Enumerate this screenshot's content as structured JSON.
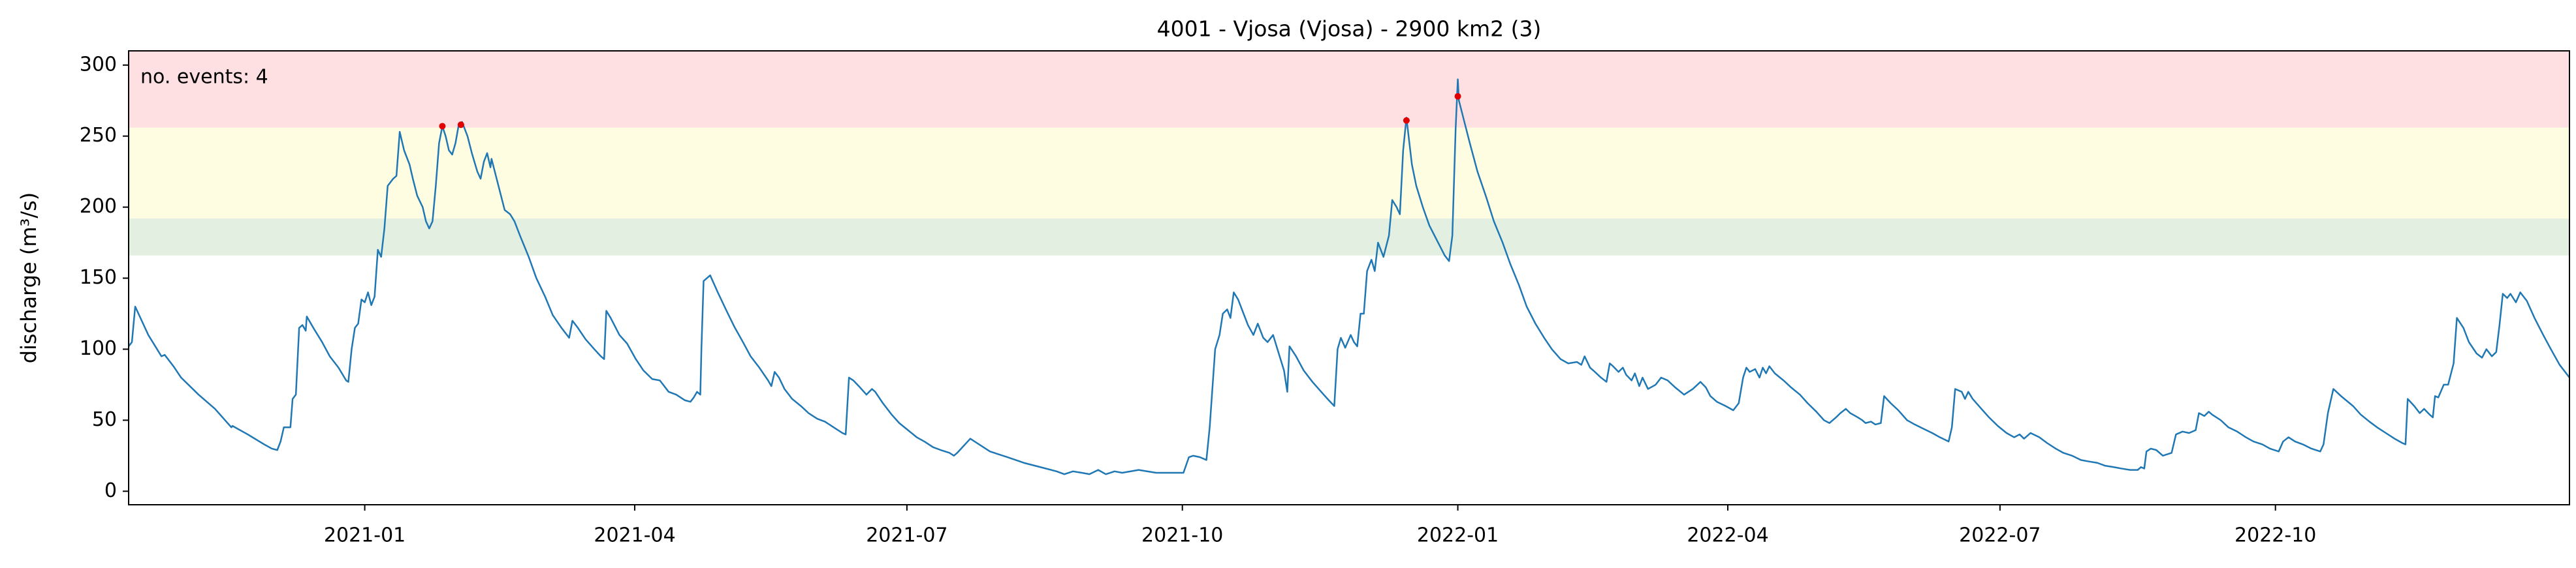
{
  "chart_data": {
    "type": "line",
    "title": "4001 - Vjosa (Vjosa) - 2900 km2 (3)",
    "ylabel": "discharge (m³/s)",
    "annotation": "no. events: 4",
    "annotation_color": "#e00000",
    "color": "#1f77b4",
    "xlim": [
      2020.784,
      2023.017
    ],
    "xticks": [
      {
        "value": 2021.0,
        "label": "2021-01"
      },
      {
        "value": 2021.247,
        "label": "2021-04"
      },
      {
        "value": 2021.496,
        "label": "2021-07"
      },
      {
        "value": 2021.748,
        "label": "2021-10"
      },
      {
        "value": 2022.0,
        "label": "2022-01"
      },
      {
        "value": 2022.247,
        "label": "2022-04"
      },
      {
        "value": 2022.496,
        "label": "2022-07"
      },
      {
        "value": 2022.748,
        "label": "2022-10"
      }
    ],
    "ylim": [
      -9.5,
      310
    ],
    "yticks": [
      0,
      50,
      100,
      150,
      200,
      250,
      300
    ],
    "bands": [
      {
        "lower": 166,
        "upper": 192,
        "color": "#e3f0e1"
      },
      {
        "lower": 192,
        "upper": 256,
        "color": "#fefde1"
      },
      {
        "lower": 256,
        "upper": 310,
        "color": "#ffe0e2"
      }
    ],
    "events": {
      "color": "#e00000",
      "x": [
        2021.071,
        2021.088,
        2021.953,
        2022.0
      ],
      "values": [
        257,
        258,
        261,
        278
      ]
    },
    "x": [
      2020.784,
      2020.787,
      2020.79,
      2020.796,
      2020.802,
      2020.81,
      2020.814,
      2020.817,
      2020.825,
      2020.832,
      2020.848,
      2020.863,
      2020.878,
      2020.879,
      2020.893,
      2020.908,
      2020.915,
      2020.92,
      2020.923,
      2020.926,
      2020.932,
      2020.934,
      2020.937,
      2020.94,
      2020.943,
      2020.946,
      2020.947,
      2020.953,
      2020.961,
      2020.968,
      2020.976,
      2020.983,
      2020.985,
      2020.988,
      2020.991,
      2020.994,
      2020.997,
      2021.0,
      2021.003,
      2021.006,
      2021.009,
      2021.012,
      2021.015,
      2021.018,
      2021.021,
      2021.026,
      2021.029,
      2021.032,
      2021.036,
      2021.041,
      2021.044,
      2021.048,
      2021.053,
      2021.056,
      2021.059,
      2021.062,
      2021.065,
      2021.068,
      2021.071,
      2021.074,
      2021.077,
      2021.08,
      2021.083,
      2021.086,
      2021.089,
      2021.094,
      2021.098,
      2021.103,
      2021.106,
      2021.109,
      2021.112,
      2021.115,
      2021.116,
      2021.119,
      2021.124,
      2021.128,
      2021.133,
      2021.137,
      2021.142,
      2021.15,
      2021.157,
      2021.165,
      2021.172,
      2021.18,
      2021.187,
      2021.19,
      2021.195,
      2021.202,
      2021.21,
      2021.216,
      2021.219,
      2021.221,
      2021.225,
      2021.233,
      2021.24,
      2021.248,
      2021.255,
      2021.263,
      2021.27,
      2021.273,
      2021.278,
      2021.285,
      2021.293,
      2021.298,
      2021.301,
      2021.304,
      2021.307,
      2021.308,
      2021.31,
      2021.316,
      2021.323,
      2021.331,
      2021.338,
      2021.346,
      2021.353,
      2021.361,
      2021.369,
      2021.372,
      2021.375,
      2021.379,
      2021.384,
      2021.391,
      2021.399,
      2021.406,
      2021.414,
      2021.421,
      2021.429,
      2021.437,
      2021.44,
      2021.443,
      2021.447,
      2021.452,
      2021.459,
      2021.464,
      2021.467,
      2021.474,
      2021.482,
      2021.489,
      2021.497,
      2021.505,
      2021.512,
      2021.52,
      2021.527,
      2021.535,
      2021.539,
      2021.542,
      2021.554,
      2021.56,
      2021.572,
      2021.588,
      2021.603,
      2021.618,
      2021.633,
      2021.64,
      2021.648,
      2021.656,
      2021.663,
      2021.671,
      2021.678,
      2021.686,
      2021.693,
      2021.708,
      2021.724,
      2021.739,
      2021.749,
      2021.754,
      2021.758,
      2021.764,
      2021.77,
      2021.773,
      2021.778,
      2021.782,
      2021.785,
      2021.789,
      2021.792,
      2021.795,
      2021.799,
      2021.804,
      2021.808,
      2021.813,
      2021.817,
      2021.822,
      2021.826,
      2021.831,
      2021.837,
      2021.841,
      2021.844,
      2021.846,
      2021.852,
      2021.859,
      2021.867,
      2021.875,
      2021.882,
      2021.887,
      2021.89,
      2021.893,
      2021.897,
      2021.902,
      2021.905,
      2021.908,
      2021.911,
      2021.914,
      2021.917,
      2021.921,
      2021.924,
      2021.927,
      2021.932,
      2021.937,
      2021.94,
      2021.944,
      2021.947,
      2021.95,
      2021.953,
      2021.958,
      2021.962,
      2021.968,
      2021.974,
      2021.98,
      2021.988,
      2021.992,
      2021.995,
      2021.998,
      2022.0,
      2022.001,
      2022.006,
      2022.011,
      2022.018,
      2022.026,
      2022.033,
      2022.041,
      2022.048,
      2022.056,
      2022.063,
      2022.071,
      2022.079,
      2022.086,
      2022.094,
      2022.101,
      2022.109,
      2022.113,
      2022.116,
      2022.121,
      2022.124,
      2022.131,
      2022.136,
      2022.139,
      2022.142,
      2022.147,
      2022.151,
      2022.154,
      2022.159,
      2022.162,
      2022.166,
      2022.169,
      2022.174,
      2022.181,
      2022.186,
      2022.192,
      2022.199,
      2022.207,
      2022.215,
      2022.222,
      2022.227,
      2022.231,
      2022.237,
      2022.245,
      2022.252,
      2022.257,
      2022.261,
      2022.264,
      2022.267,
      2022.272,
      2022.276,
      2022.279,
      2022.282,
      2022.285,
      2022.29,
      2022.298,
      2022.305,
      2022.313,
      2022.32,
      2022.328,
      2022.335,
      2022.34,
      2022.346,
      2022.35,
      2022.355,
      2022.359,
      2022.366,
      2022.37,
      2022.373,
      2022.378,
      2022.382,
      2022.387,
      2022.39,
      2022.396,
      2022.403,
      2022.411,
      2022.418,
      2022.426,
      2022.434,
      2022.441,
      2022.449,
      2022.452,
      2022.455,
      2022.461,
      2022.464,
      2022.467,
      2022.471,
      2022.479,
      2022.486,
      2022.494,
      2022.502,
      2022.509,
      2022.514,
      2022.518,
      2022.524,
      2022.532,
      2022.539,
      2022.547,
      2022.554,
      2022.562,
      2022.57,
      2022.577,
      2022.585,
      2022.592,
      2022.6,
      2022.607,
      2022.615,
      2022.622,
      2022.625,
      2022.628,
      2022.63,
      2022.634,
      2022.639,
      2022.645,
      2022.653,
      2022.657,
      2022.663,
      2022.669,
      2022.675,
      2022.678,
      2022.683,
      2022.687,
      2022.69,
      2022.698,
      2022.705,
      2022.713,
      2022.721,
      2022.728,
      2022.736,
      2022.743,
      2022.751,
      2022.755,
      2022.76,
      2022.766,
      2022.773,
      2022.781,
      2022.789,
      2022.792,
      2022.796,
      2022.801,
      2022.808,
      2022.819,
      2022.826,
      2022.834,
      2022.841,
      2022.849,
      2022.857,
      2022.864,
      2022.867,
      2022.869,
      2022.875,
      2022.88,
      2022.884,
      2022.889,
      2022.892,
      2022.894,
      2022.897,
      2022.902,
      2022.906,
      2022.911,
      2022.914,
      2022.92,
      2022.925,
      2022.932,
      2022.937,
      2022.941,
      2022.946,
      2022.95,
      2022.953,
      2022.956,
      2022.96,
      2022.963,
      2022.968,
      2022.972,
      2022.978,
      2022.985,
      2022.993,
      2023.0,
      2023.008,
      2023.017
    ],
    "values": [
      102,
      105,
      130,
      120,
      110,
      100,
      95,
      96,
      88,
      80,
      68,
      58,
      45,
      46,
      40,
      33,
      30,
      29,
      35,
      45,
      45,
      65,
      68,
      115,
      117,
      113,
      123,
      115,
      105,
      95,
      87,
      78,
      77,
      100,
      115,
      118,
      135,
      133,
      140,
      131,
      137,
      170,
      165,
      185,
      215,
      220,
      222,
      253,
      240,
      230,
      220,
      208,
      200,
      190,
      185,
      190,
      215,
      245,
      257,
      250,
      240,
      237,
      245,
      258,
      260,
      250,
      238,
      225,
      220,
      232,
      238,
      228,
      234,
      225,
      210,
      198,
      195,
      190,
      180,
      165,
      150,
      137,
      124,
      115,
      108,
      120,
      115,
      107,
      100,
      95,
      93,
      127,
      122,
      110,
      104,
      93,
      85,
      79,
      78,
      75,
      70,
      68,
      64,
      63,
      66,
      70,
      68,
      100,
      148,
      152,
      140,
      127,
      116,
      105,
      95,
      87,
      78,
      74,
      84,
      80,
      72,
      65,
      60,
      55,
      51,
      49,
      45,
      41,
      40,
      80,
      78,
      74,
      68,
      72,
      70,
      62,
      54,
      48,
      43,
      38,
      35,
      31,
      29,
      27,
      25,
      27,
      37,
      34,
      28,
      24,
      20,
      17,
      14,
      12,
      14,
      13,
      12,
      15,
      12,
      14,
      13,
      15,
      13,
      13,
      13,
      24,
      25,
      24,
      22,
      45,
      100,
      110,
      125,
      128,
      122,
      140,
      135,
      125,
      117,
      110,
      118,
      108,
      105,
      110,
      95,
      85,
      70,
      102,
      95,
      85,
      77,
      70,
      64,
      60,
      100,
      108,
      101,
      110,
      105,
      102,
      125,
      125,
      155,
      163,
      155,
      175,
      165,
      180,
      205,
      200,
      195,
      240,
      263,
      230,
      215,
      200,
      187,
      178,
      166,
      162,
      180,
      255,
      290,
      275,
      260,
      245,
      225,
      207,
      190,
      175,
      160,
      145,
      130,
      118,
      108,
      100,
      93,
      90,
      91,
      89,
      95,
      87,
      85,
      80,
      77,
      90,
      88,
      84,
      87,
      82,
      78,
      83,
      74,
      80,
      72,
      75,
      80,
      78,
      73,
      68,
      72,
      77,
      73,
      67,
      63,
      60,
      57,
      62,
      80,
      87,
      84,
      86,
      80,
      87,
      83,
      88,
      83,
      78,
      73,
      68,
      62,
      56,
      50,
      48,
      52,
      55,
      58,
      55,
      52,
      50,
      48,
      49,
      47,
      48,
      67,
      62,
      57,
      50,
      47,
      44,
      41,
      38,
      35,
      45,
      72,
      70,
      65,
      70,
      65,
      58,
      52,
      46,
      41,
      38,
      40,
      37,
      41,
      38,
      34,
      30,
      27,
      25,
      22,
      21,
      20,
      18,
      17,
      16,
      15,
      15,
      17,
      16,
      28,
      30,
      29,
      25,
      27,
      40,
      42,
      41,
      43,
      55,
      53,
      56,
      54,
      50,
      45,
      42,
      38,
      35,
      33,
      30,
      28,
      35,
      38,
      35,
      33,
      30,
      28,
      33,
      55,
      72,
      67,
      60,
      54,
      49,
      45,
      41,
      37,
      34,
      33,
      65,
      60,
      55,
      58,
      54,
      52,
      67,
      66,
      75,
      75,
      90,
      122,
      115,
      105,
      97,
      94,
      100,
      95,
      98,
      117,
      139,
      136,
      139,
      133,
      140,
      134,
      122,
      110,
      100,
      89,
      80
    ]
  }
}
